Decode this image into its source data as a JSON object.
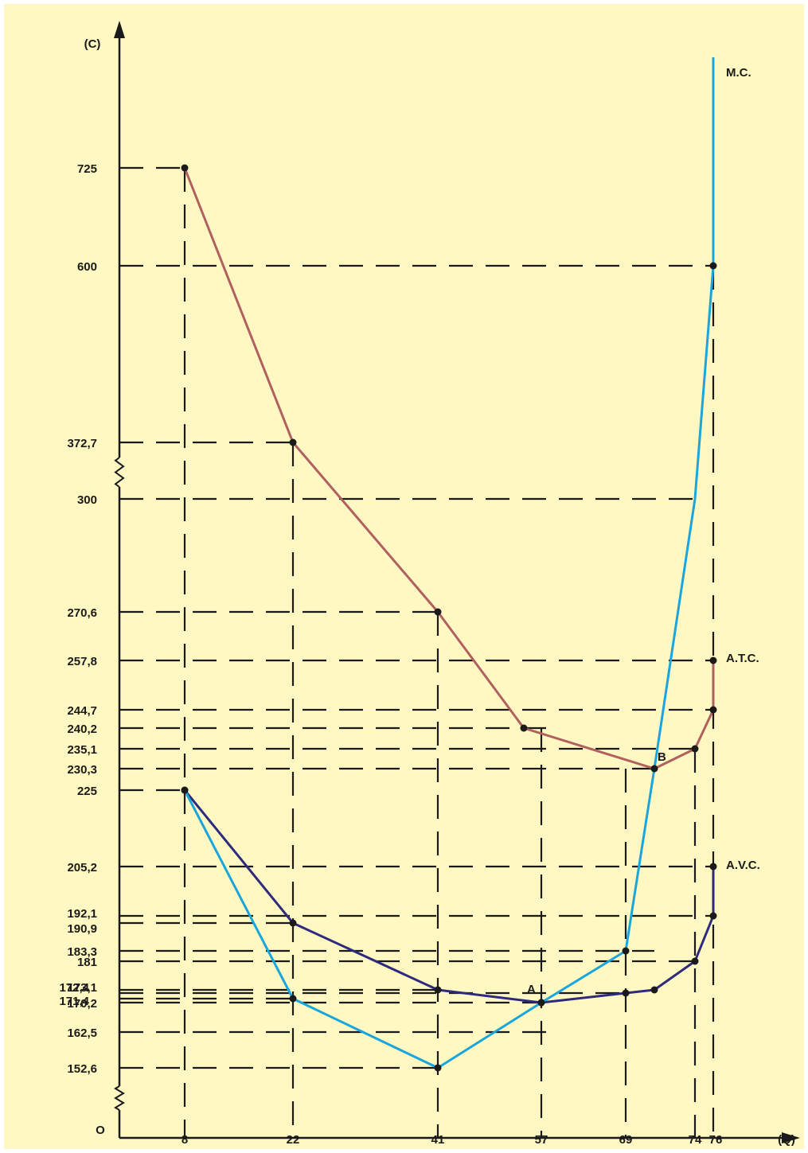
{
  "chart_data": {
    "type": "line",
    "xlabel": "(Q)",
    "ylabel": "(C)",
    "origin_label": "O",
    "x_ticks": [
      "8",
      "22",
      "41",
      "57",
      "69",
      "74",
      "76"
    ],
    "y_ticks": [
      "725",
      "600",
      "372,7",
      "300",
      "270,6",
      "257,8",
      "244,7",
      "240,2",
      "235,1",
      "230,3",
      "225",
      "205,2",
      "192,1",
      "190,9",
      "183,3",
      "181",
      "173,1",
      "172,4",
      "171,4",
      "170,2",
      "162,5",
      "152,6"
    ],
    "y_axis_breaks": true,
    "series": [
      {
        "name": "A.T.C.",
        "color": "#b0605f",
        "points": [
          {
            "x": 8,
            "y": 725
          },
          {
            "x": 22,
            "y": 372.7
          },
          {
            "x": 41,
            "y": 270.6
          },
          {
            "x": 56,
            "y": 240.2
          },
          {
            "x": 73,
            "y": 230.3
          },
          {
            "x": 75,
            "y": 235.1
          },
          {
            "x": 76,
            "y": 244.7
          },
          {
            "x": 76,
            "y": 257.8
          }
        ]
      },
      {
        "name": "A.V.C.",
        "color": "#2e2a7e",
        "points": [
          {
            "x": 8,
            "y": 225
          },
          {
            "x": 22,
            "y": 190.9
          },
          {
            "x": 41,
            "y": 173.1
          },
          {
            "x": 57,
            "y": 170.2
          },
          {
            "x": 69,
            "y": 172.4
          },
          {
            "x": 73,
            "y": 173.1
          },
          {
            "x": 75,
            "y": 181
          },
          {
            "x": 76,
            "y": 192.1
          },
          {
            "x": 76,
            "y": 205.2
          }
        ]
      },
      {
        "name": "M.C.",
        "color": "#1aa6dc",
        "points": [
          {
            "x": 8,
            "y": 225
          },
          {
            "x": 22,
            "y": 171.4
          },
          {
            "x": 41,
            "y": 152.6
          },
          {
            "x": 57,
            "y": 170.2
          },
          {
            "x": 69,
            "y": 183.3
          },
          {
            "x": 73,
            "y": 230.3
          },
          {
            "x": 75,
            "y": 300
          },
          {
            "x": 76,
            "y": 600
          },
          {
            "x": 76,
            "y": 800
          }
        ]
      }
    ],
    "annotations": [
      {
        "text": "A",
        "at": {
          "x": 57,
          "y": 170.2
        }
      },
      {
        "text": "B",
        "at": {
          "x": 73,
          "y": 230.3
        }
      }
    ],
    "colors": {
      "background": "#fff8c2",
      "border": "#ffffff",
      "axis": "#1a1a1a"
    }
  }
}
